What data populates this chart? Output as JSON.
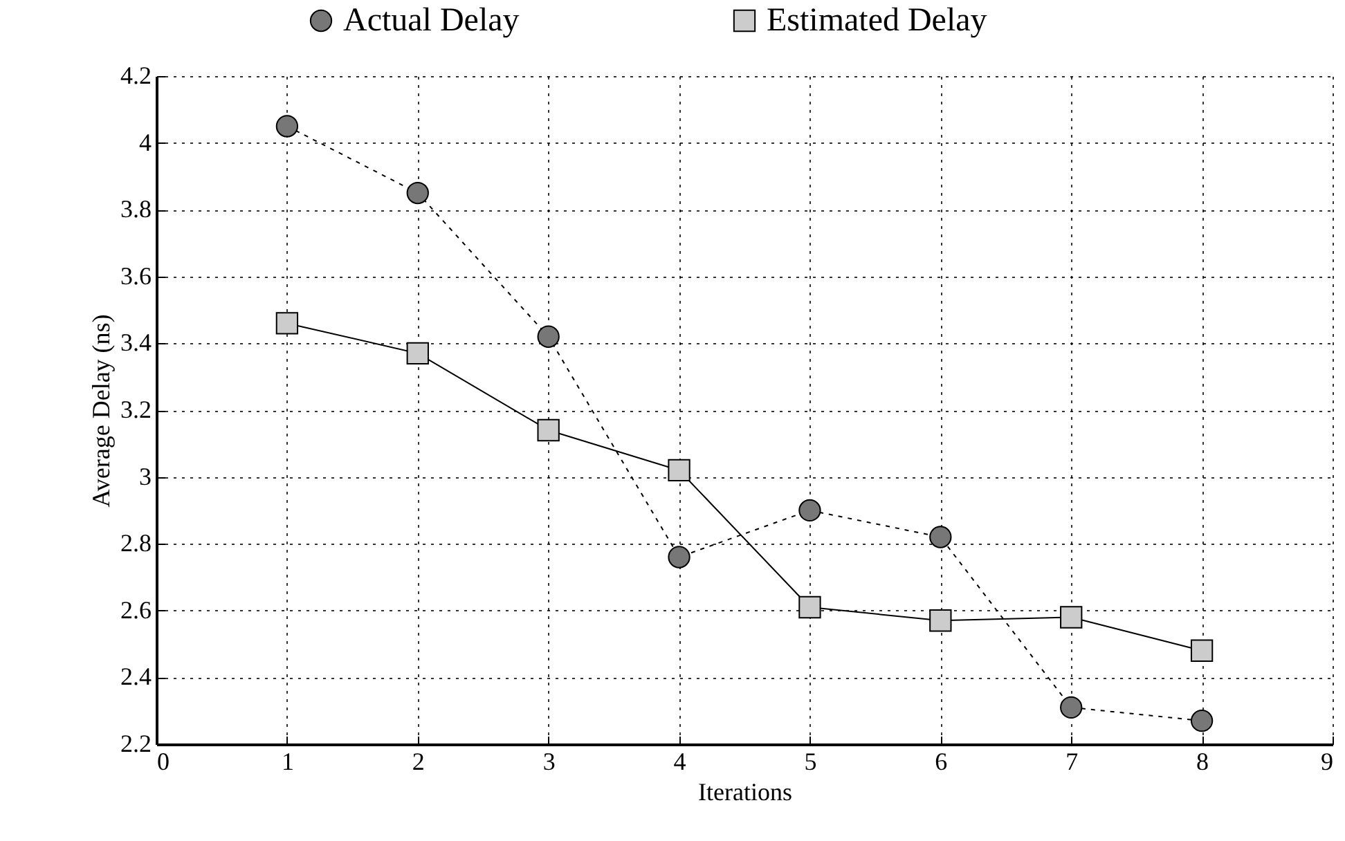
{
  "chart_data": {
    "type": "line",
    "xlabel": "Iterations",
    "ylabel": "Average Delay (ns)",
    "x": [
      1,
      2,
      3,
      4,
      5,
      6,
      7,
      8
    ],
    "series": [
      {
        "name": "Actual Delay",
        "color": "#777777",
        "marker": "circle",
        "line_style": "dashed",
        "values": [
          4.05,
          3.85,
          3.42,
          2.76,
          2.9,
          2.82,
          2.31,
          2.27
        ]
      },
      {
        "name": "Estimated Delay",
        "color": "#cccccc",
        "marker": "square",
        "line_style": "solid",
        "values": [
          3.46,
          3.37,
          3.14,
          3.02,
          2.61,
          2.57,
          2.58,
          2.48
        ]
      }
    ],
    "xlim": [
      0,
      9
    ],
    "xticks": [
      0,
      1,
      2,
      3,
      4,
      5,
      6,
      7,
      8,
      9
    ],
    "ylim": [
      2.2,
      4.2
    ],
    "yticks": [
      2.2,
      2.4,
      2.6,
      2.8,
      3,
      3.2,
      3.4,
      3.6,
      3.8,
      4,
      4.2
    ],
    "grid": true,
    "legend": "top"
  }
}
